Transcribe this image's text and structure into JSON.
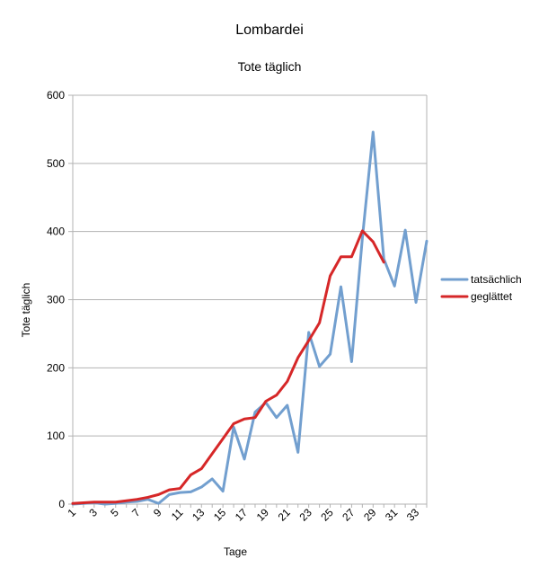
{
  "chart_data": {
    "type": "line",
    "title": "Lombardei",
    "subtitle": "Tote täglich",
    "xlabel": "Tage",
    "ylabel": "Tote täglich",
    "ylim": [
      0,
      600
    ],
    "yticks": [
      0,
      100,
      200,
      300,
      400,
      500,
      600
    ],
    "xlim": [
      1,
      34
    ],
    "xticks": [
      1,
      3,
      5,
      7,
      9,
      11,
      13,
      15,
      17,
      19,
      21,
      23,
      25,
      27,
      29,
      31,
      33
    ],
    "grid": true,
    "legend_position": "right",
    "series": [
      {
        "name": "tatsächlich",
        "color": "#729fcf",
        "x": [
          1,
          2,
          3,
          4,
          5,
          6,
          7,
          8,
          9,
          10,
          11,
          12,
          13,
          14,
          15,
          16,
          17,
          18,
          19,
          20,
          21,
          22,
          23,
          24,
          25,
          26,
          27,
          28,
          29,
          30,
          31,
          32,
          33,
          34
        ],
        "values": [
          0,
          1,
          2,
          0,
          1,
          3,
          4,
          7,
          1,
          14,
          17,
          18,
          25,
          37,
          19,
          113,
          66,
          135,
          149,
          127,
          145,
          76,
          252,
          202,
          220,
          319,
          209,
          390,
          546,
          360,
          320,
          402,
          296,
          386
        ]
      },
      {
        "name": "geglättet",
        "color": "#d62728",
        "x": [
          1,
          2,
          3,
          4,
          5,
          6,
          7,
          8,
          9,
          10,
          11,
          12,
          13,
          14,
          15,
          16,
          17,
          18,
          19,
          20,
          21,
          22,
          23,
          24,
          25,
          26,
          27,
          28,
          29,
          30
        ],
        "values": [
          1,
          2,
          3,
          3,
          3,
          5,
          7,
          10,
          14,
          21,
          23,
          43,
          52,
          74,
          96,
          118,
          125,
          127,
          151,
          160,
          180,
          215,
          240,
          266,
          335,
          363,
          363,
          401,
          385,
          355
        ]
      }
    ]
  }
}
